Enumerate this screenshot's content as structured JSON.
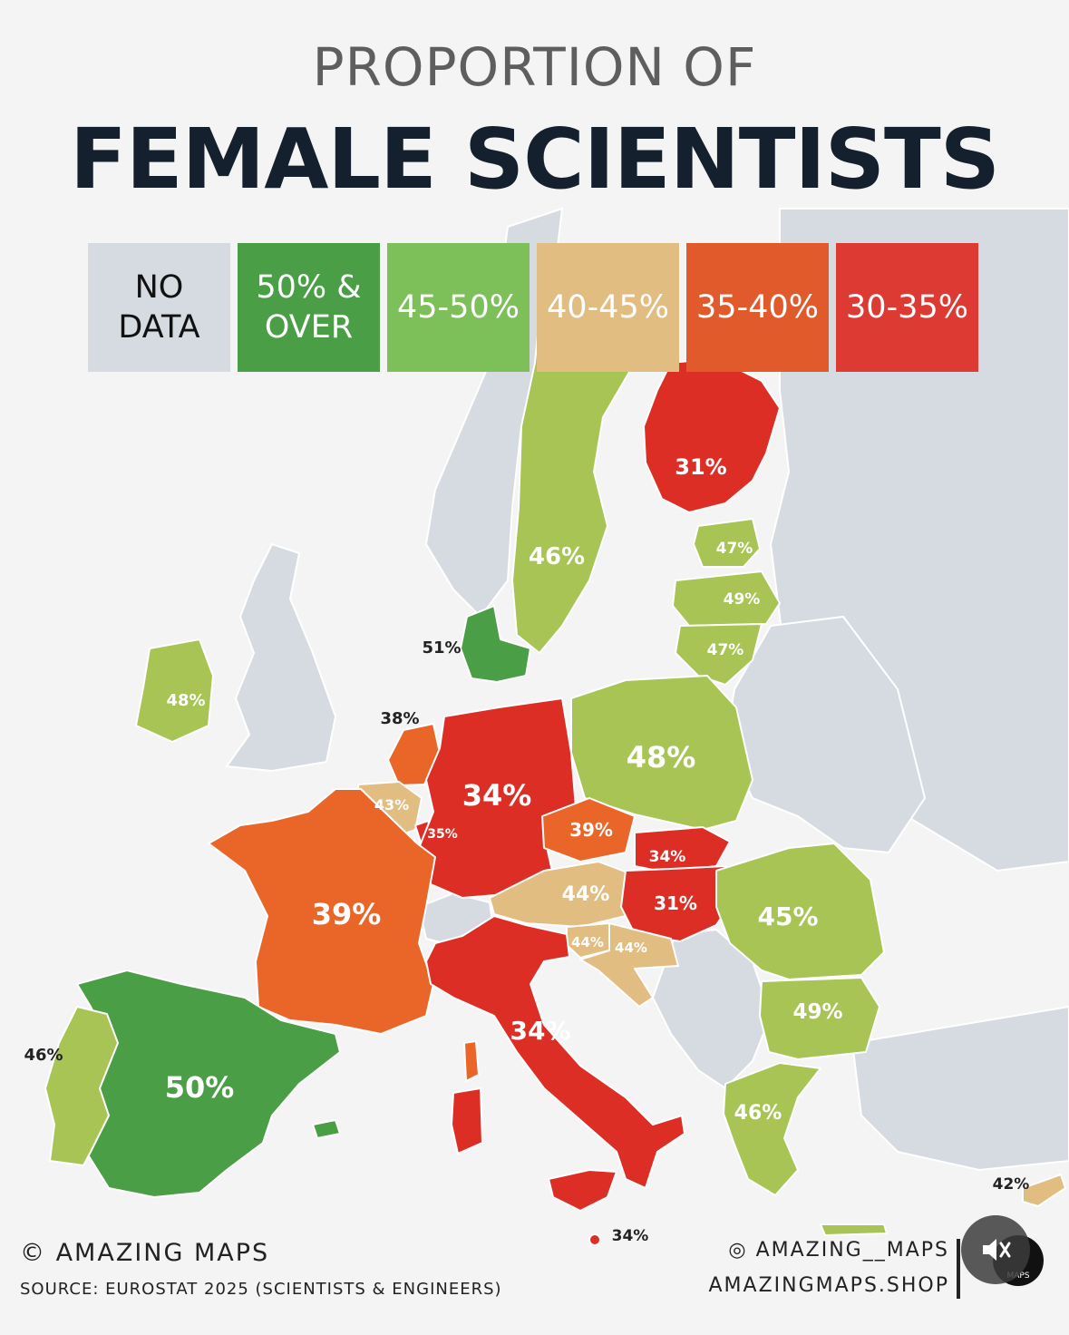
{
  "title": {
    "top": "PROPORTION OF",
    "main": "FEMALE SCIENTISTS"
  },
  "legend": [
    {
      "label": "NO\nDATA",
      "color": "#d5dbe0"
    },
    {
      "label": "50% &\nOVER",
      "color": "#4a9e45"
    },
    {
      "label": "45-50%",
      "color": "#a7c454"
    },
    {
      "label": "40-45%",
      "color": "#e2bd82"
    },
    {
      "label": "35-40%",
      "color": "#ea6528"
    },
    {
      "label": "30-35%",
      "color": "#dd2e26"
    }
  ],
  "countries": {
    "finland": "31%",
    "sweden": "46%",
    "estonia": "47%",
    "latvia": "49%",
    "lithuania": "47%",
    "denmark": "51%",
    "ireland": "48%",
    "netherlands": "38%",
    "belgium": "43%",
    "luxembourg": "35%",
    "germany": "34%",
    "poland": "48%",
    "czechia": "39%",
    "slovakia": "34%",
    "austria": "44%",
    "hungary": "31%",
    "slovenia": "44%",
    "croatia": "44%",
    "romania": "45%",
    "bulgaria": "49%",
    "france": "39%",
    "italy": "34%",
    "spain": "50%",
    "portugal": "46%",
    "greece": "46%",
    "cyprus": "42%",
    "malta": "34%"
  },
  "footer": {
    "credit": "© AMAZING MAPS",
    "source": "SOURCE: EUROSTAT 2025 (SCIENTISTS & ENGINEERS)",
    "instagram": "AMAZING__MAPS",
    "shop": "AMAZINGMAPS.SHOP",
    "logo": "MAPS"
  }
}
